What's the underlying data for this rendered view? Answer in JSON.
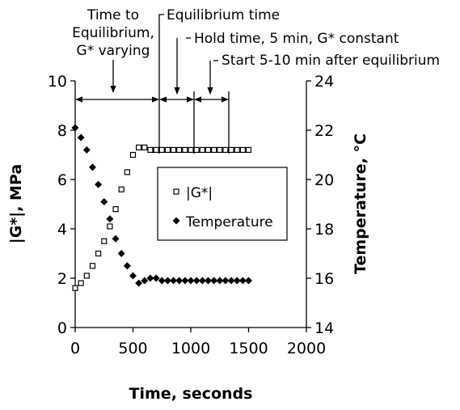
{
  "chart_data": {
    "type": "scatter",
    "x_label": "Time, seconds",
    "y_label": "|G*|, MPa",
    "y2_label": "Temperature, °C",
    "x": [
      0,
      50,
      100,
      150,
      200,
      250,
      300,
      350,
      400,
      450,
      500,
      550,
      600,
      650,
      700,
      750,
      800,
      850,
      900,
      950,
      1000,
      1050,
      1100,
      1150,
      1200,
      1250,
      1300,
      1350,
      1400,
      1450,
      1500
    ],
    "series": [
      {
        "name": "|G*|",
        "color": "#000000",
        "marker": "square",
        "values": [
          1.6,
          1.8,
          2.1,
          2.5,
          3.0,
          3.5,
          4.1,
          4.8,
          5.6,
          6.3,
          7.0,
          7.3,
          7.3,
          7.2,
          7.2,
          7.2,
          7.2,
          7.2,
          7.2,
          7.2,
          7.2,
          7.2,
          7.2,
          7.2,
          7.2,
          7.2,
          7.2,
          7.2,
          7.2,
          7.2,
          7.2
        ]
      },
      {
        "name": "Temperature",
        "color": "#000000",
        "marker": "diamond",
        "axis": "y2",
        "values": [
          22.1,
          21.7,
          21.2,
          20.5,
          19.8,
          19.1,
          18.4,
          17.6,
          17.0,
          16.5,
          16.1,
          15.8,
          15.9,
          16.0,
          16.0,
          15.9,
          15.9,
          15.9,
          15.9,
          15.9,
          15.9,
          15.9,
          15.9,
          15.9,
          15.9,
          15.9,
          15.9,
          15.9,
          15.9,
          15.9,
          15.9
        ]
      }
    ],
    "xlim": [
      0,
      2000
    ],
    "xticks": [
      0,
      500,
      1000,
      1500,
      2000
    ],
    "ylim": [
      0,
      10
    ],
    "yticks": [
      0,
      2,
      4,
      6,
      8,
      10
    ],
    "y2lim": [
      14,
      24
    ],
    "y2ticks": [
      14,
      16,
      18,
      20,
      22,
      24
    ],
    "annotations": [
      {
        "lines": [
          "Time to",
          "Equilibrium,",
          "G* varying"
        ]
      },
      {
        "lines": [
          "Equilibrium time"
        ]
      },
      {
        "lines": [
          "Hold time, 5 min, G* constant"
        ]
      },
      {
        "lines": [
          "Start 5-10 min after equilibrium"
        ]
      }
    ]
  }
}
